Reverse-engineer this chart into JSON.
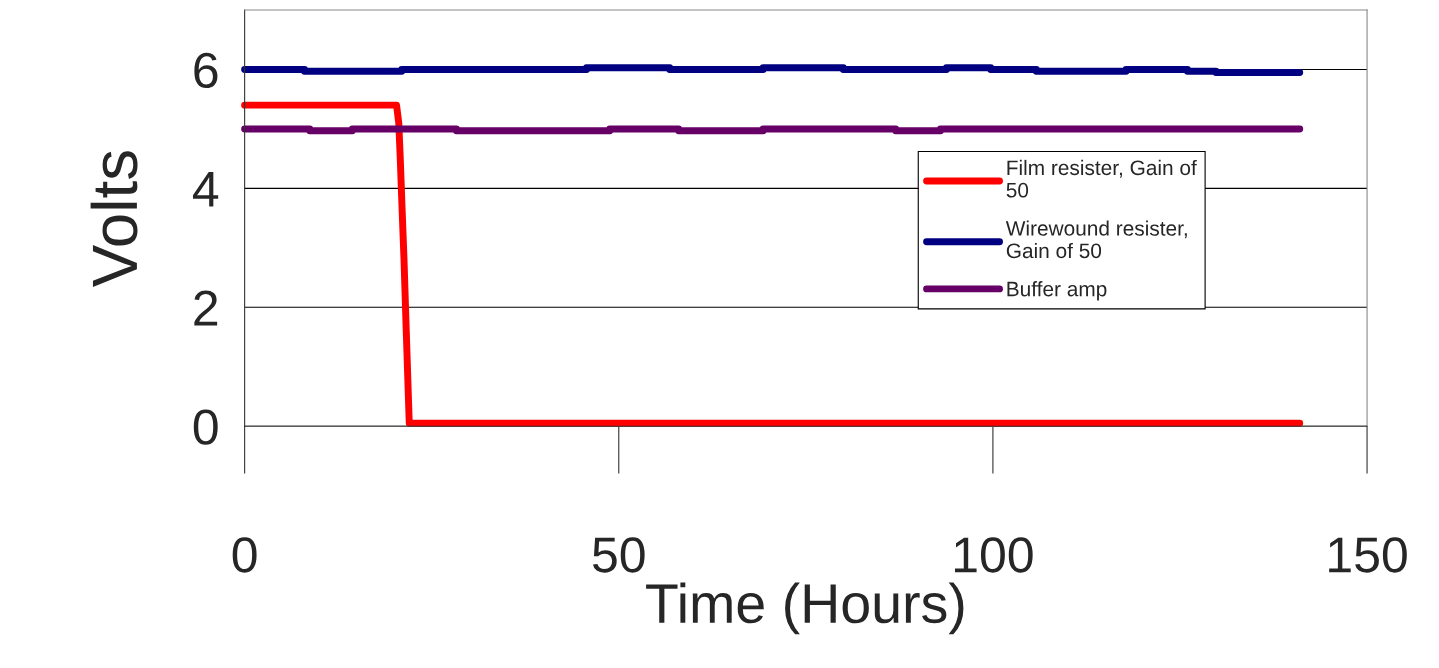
{
  "chart_data": {
    "type": "line",
    "xlabel": "Time (Hours)",
    "ylabel": "Volts",
    "xlim": [
      0,
      150
    ],
    "xticks": [
      0,
      50,
      100,
      150
    ],
    "ylim": [
      0,
      7
    ],
    "yticks": [
      0,
      2,
      4,
      6
    ],
    "grid": "y",
    "legend": "right",
    "marker": "none",
    "line_style": "solid",
    "series": [
      {
        "name": "Film resister, Gain of\n50",
        "color": "#ff0000",
        "x": [
          0,
          20.3,
          20.6,
          20.8,
          21.0,
          21.3,
          21.6,
          22.0,
          141
        ],
        "values": [
          5.4,
          5.4,
          5.1,
          4.5,
          3.8,
          2.8,
          1.6,
          0.05,
          0.05
        ]
      },
      {
        "name": "Wirewound resister,\nGain of 50",
        "color": "#000080",
        "x": [
          0,
          8,
          8,
          21,
          21,
          45.7,
          45.7,
          56.8,
          56.8,
          69.3,
          69.3,
          80,
          80,
          93.8,
          93.8,
          99.7,
          99.7,
          105.8,
          105.8,
          117.8,
          117.8,
          126,
          126,
          129.8,
          129.8,
          141
        ],
        "values": [
          6.0,
          6.0,
          5.97,
          5.97,
          6.0,
          6.0,
          6.03,
          6.03,
          6.0,
          6.0,
          6.03,
          6.03,
          6.0,
          6.0,
          6.03,
          6.03,
          6.0,
          6.0,
          5.97,
          5.97,
          6.0,
          6.0,
          5.97,
          5.97,
          5.95,
          5.95
        ]
      },
      {
        "name": "Buffer amp",
        "color": "#660066",
        "x": [
          0,
          8.7,
          8.7,
          14.4,
          14.4,
          28.3,
          28.3,
          48.8,
          48.8,
          58,
          58,
          69.3,
          69.3,
          87,
          87,
          93,
          93,
          141
        ],
        "values": [
          5.0,
          5.0,
          4.97,
          4.97,
          5.0,
          5.0,
          4.97,
          4.97,
          5.0,
          5.0,
          4.97,
          4.97,
          5.0,
          5.0,
          4.97,
          4.97,
          5.0,
          5.0
        ]
      }
    ]
  }
}
